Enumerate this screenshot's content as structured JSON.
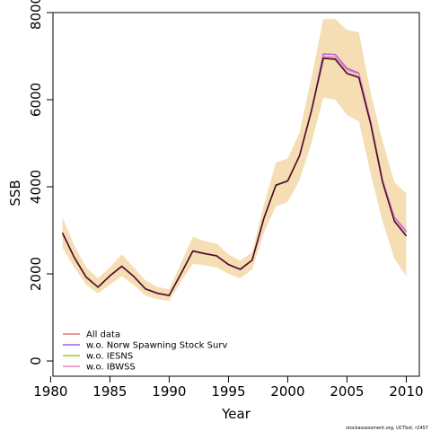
{
  "chart_data": {
    "type": "line",
    "xlabel": "Year",
    "ylabel": "SSB",
    "xlim": [
      1980.2,
      2011.1
    ],
    "ylim": [
      -350,
      8000
    ],
    "x_ticks": [
      1980,
      1985,
      1990,
      1995,
      2000,
      2005,
      2010
    ],
    "y_ticks": [
      0,
      2000,
      4000,
      6000,
      8000
    ],
    "grid": false,
    "legend_position": "bottom-left",
    "footer": "stockassessment.org, UCTbst, r2457",
    "x": [
      1981,
      1982,
      1983,
      1984,
      1985,
      1986,
      1987,
      1988,
      1989,
      1990,
      1991,
      1992,
      1993,
      1994,
      1995,
      1996,
      1997,
      1998,
      1999,
      2000,
      2001,
      2002,
      2003,
      2004,
      2005,
      2006,
      2007,
      2008,
      2009,
      2010
    ],
    "band": {
      "color": "#f5deb3",
      "lower": [
        2600,
        2150,
        1750,
        1550,
        1750,
        1950,
        1750,
        1500,
        1420,
        1380,
        1820,
        2230,
        2200,
        2150,
        2000,
        1900,
        2100,
        2950,
        3550,
        3650,
        4150,
        5000,
        6050,
        6000,
        5650,
        5500,
        4300,
        3200,
        2350,
        1950
      ],
      "upper": [
        3300,
        2650,
        2150,
        1900,
        2150,
        2450,
        2150,
        1850,
        1700,
        1650,
        2250,
        2850,
        2750,
        2700,
        2450,
        2300,
        2500,
        3600,
        4550,
        4650,
        5250,
        6500,
        7850,
        7850,
        7600,
        7550,
        6150,
        5050,
        4100,
        3850
      ]
    },
    "series": [
      {
        "name": "All data",
        "color": "#e8737a",
        "values": [
          2950,
          2380,
          1930,
          1700,
          1960,
          2180,
          1950,
          1660,
          1560,
          1510,
          2010,
          2530,
          2470,
          2420,
          2220,
          2110,
          2320,
          3290,
          4040,
          4140,
          4720,
          5750,
          6960,
          6940,
          6610,
          6520,
          5450,
          4120,
          3220,
          2880
        ]
      },
      {
        "name": "w.o. Norw Spawning Stock Surv",
        "color": "#a45ee5",
        "values": [
          2930,
          2370,
          1920,
          1690,
          1950,
          2170,
          1940,
          1650,
          1550,
          1500,
          2000,
          2520,
          2460,
          2410,
          2210,
          2100,
          2310,
          3280,
          4030,
          4130,
          4710,
          5740,
          7050,
          7040,
          6720,
          6610,
          5500,
          4150,
          3300,
          2980
        ]
      },
      {
        "name": "w.o. IESNS",
        "color": "#9acd32",
        "values": [
          2945,
          2375,
          1925,
          1695,
          1955,
          2175,
          1945,
          1655,
          1555,
          1505,
          2005,
          2525,
          2465,
          2415,
          2215,
          2105,
          2315,
          3285,
          4035,
          4135,
          4715,
          5745,
          6955,
          6935,
          6605,
          6515,
          5445,
          4115,
          3215,
          2875
        ]
      },
      {
        "name": "w.o. IBWSS",
        "color": "#ee82c8",
        "values": [
          2940,
          2370,
          1925,
          1695,
          1955,
          2175,
          1945,
          1655,
          1555,
          1505,
          2005,
          2525,
          2465,
          2415,
          2215,
          2105,
          2315,
          3285,
          4035,
          4135,
          4715,
          5745,
          6990,
          6980,
          6680,
          6590,
          5480,
          4150,
          3280,
          2950
        ]
      },
      {
        "name": "",
        "color": "#4a0f2a",
        "values": [
          2940,
          2375,
          1925,
          1695,
          1955,
          2175,
          1945,
          1655,
          1555,
          1505,
          2005,
          2525,
          2465,
          2415,
          2215,
          2105,
          2315,
          3285,
          4035,
          4135,
          4715,
          5745,
          6950,
          6930,
          6600,
          6510,
          5440,
          4110,
          3210,
          2870
        ]
      }
    ]
  }
}
